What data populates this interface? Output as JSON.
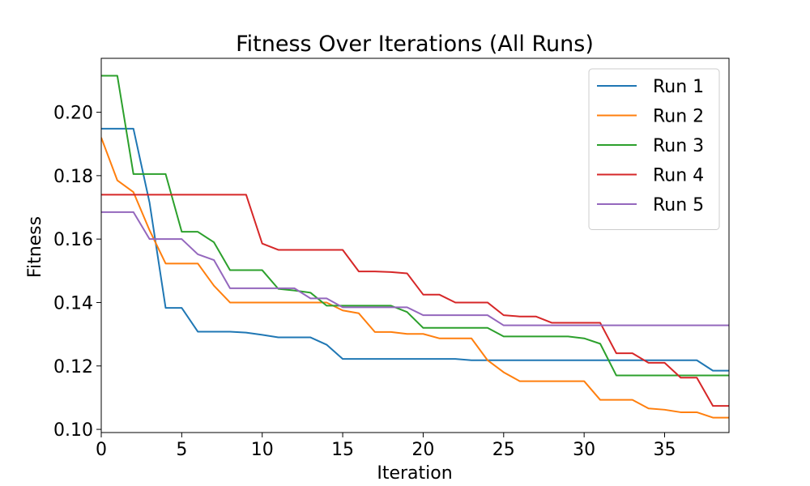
{
  "chart_data": {
    "type": "line",
    "title": "Fitness Over Iterations (All Runs)",
    "xlabel": "Iteration",
    "ylabel": "Fitness",
    "xlim": [
      0,
      39
    ],
    "ylim": [
      0.099,
      0.217
    ],
    "xticks": [
      0,
      5,
      10,
      15,
      20,
      25,
      30,
      35
    ],
    "yticks": [
      0.1,
      0.12,
      0.14,
      0.16,
      0.18,
      0.2
    ],
    "grid": false,
    "legend": "top-right",
    "x": [
      0,
      1,
      2,
      3,
      4,
      5,
      6,
      7,
      8,
      9,
      10,
      11,
      12,
      13,
      14,
      15,
      16,
      17,
      18,
      19,
      20,
      21,
      22,
      23,
      24,
      25,
      26,
      27,
      28,
      29,
      30,
      31,
      32,
      33,
      34,
      35,
      36,
      37,
      38,
      39
    ],
    "series": [
      {
        "name": "Run 1",
        "color": "#1f77b4",
        "values": [
          0.1948,
          0.1948,
          0.1948,
          0.1715,
          0.1383,
          0.1383,
          0.1308,
          0.1308,
          0.1308,
          0.1305,
          0.1298,
          0.129,
          0.129,
          0.129,
          0.1267,
          0.1222,
          0.1222,
          0.1222,
          0.1222,
          0.1222,
          0.1222,
          0.1222,
          0.1222,
          0.1218,
          0.1218,
          0.1218,
          0.1218,
          0.1218,
          0.1218,
          0.1218,
          0.1218,
          0.1218,
          0.1218,
          0.1218,
          0.1218,
          0.1218,
          0.1218,
          0.1218,
          0.1185,
          0.1185
        ]
      },
      {
        "name": "Run 2",
        "color": "#ff7f0e",
        "values": [
          0.192,
          0.1785,
          0.1748,
          0.1628,
          0.1523,
          0.1523,
          0.1523,
          0.1453,
          0.14,
          0.14,
          0.14,
          0.14,
          0.14,
          0.14,
          0.14,
          0.1375,
          0.1366,
          0.1307,
          0.1307,
          0.1301,
          0.1301,
          0.1287,
          0.1287,
          0.1287,
          0.1218,
          0.118,
          0.1152,
          0.1152,
          0.1152,
          0.1152,
          0.1152,
          0.1093,
          0.1093,
          0.1093,
          0.1066,
          0.1062,
          0.1054,
          0.1054,
          0.1037,
          0.1037
        ]
      },
      {
        "name": "Run 3",
        "color": "#2ca02c",
        "values": [
          0.2115,
          0.2115,
          0.1805,
          0.1805,
          0.1805,
          0.1623,
          0.1623,
          0.159,
          0.1502,
          0.1502,
          0.1502,
          0.1443,
          0.1438,
          0.1431,
          0.139,
          0.139,
          0.139,
          0.139,
          0.139,
          0.137,
          0.132,
          0.132,
          0.132,
          0.132,
          0.132,
          0.1293,
          0.1293,
          0.1293,
          0.1293,
          0.1293,
          0.1287,
          0.127,
          0.117,
          0.117,
          0.117,
          0.117,
          0.117,
          0.117,
          0.117,
          0.117
        ]
      },
      {
        "name": "Run 4",
        "color": "#d62728",
        "values": [
          0.174,
          0.174,
          0.174,
          0.174,
          0.174,
          0.174,
          0.174,
          0.174,
          0.174,
          0.174,
          0.1586,
          0.1566,
          0.1566,
          0.1566,
          0.1566,
          0.1566,
          0.1498,
          0.1498,
          0.1496,
          0.1492,
          0.1425,
          0.1425,
          0.14,
          0.14,
          0.14,
          0.136,
          0.1356,
          0.1356,
          0.1336,
          0.1336,
          0.1336,
          0.1336,
          0.124,
          0.124,
          0.121,
          0.121,
          0.1163,
          0.1163,
          0.1074,
          0.1074
        ]
      },
      {
        "name": "Run 5",
        "color": "#9467bd",
        "values": [
          0.1685,
          0.1685,
          0.1685,
          0.16,
          0.16,
          0.16,
          0.1552,
          0.1534,
          0.1445,
          0.1445,
          0.1445,
          0.1445,
          0.1445,
          0.1413,
          0.1413,
          0.1385,
          0.1385,
          0.1385,
          0.1385,
          0.1385,
          0.136,
          0.136,
          0.136,
          0.136,
          0.136,
          0.1328,
          0.1328,
          0.1328,
          0.1328,
          0.1328,
          0.1328,
          0.1328,
          0.1328,
          0.1328,
          0.1328,
          0.1328,
          0.1328,
          0.1328,
          0.1328,
          0.1328
        ]
      }
    ]
  }
}
